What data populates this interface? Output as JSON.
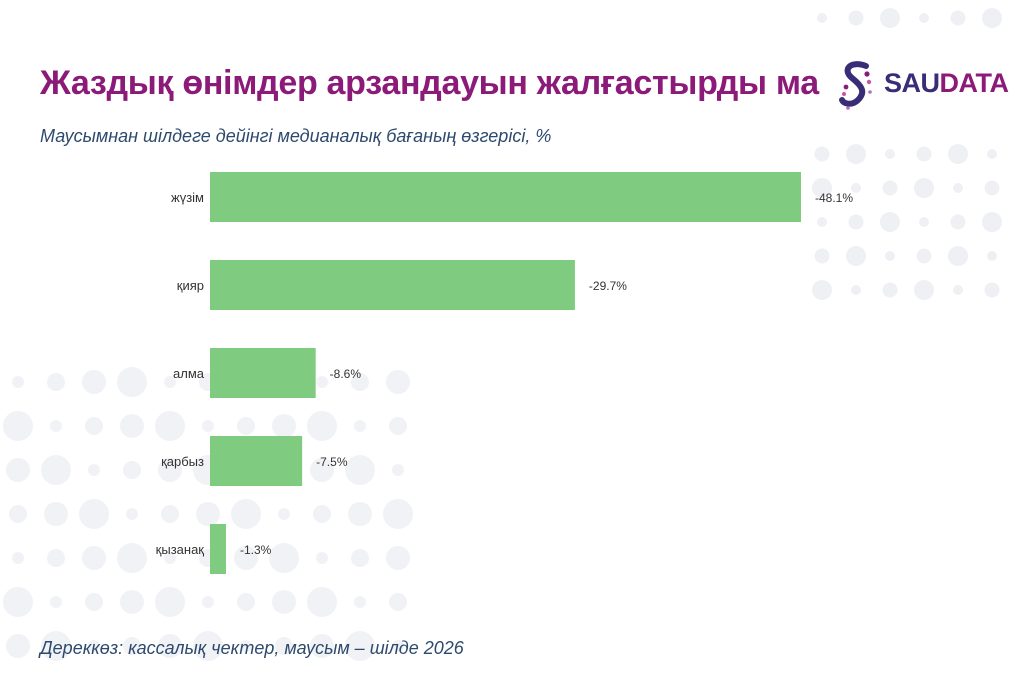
{
  "title": "Жаздық өнімдер арзандауын жалғастырды ма",
  "subtitle": "Маусымнан шілдеге дейінгі медианалық бағаның өзгерісі, %",
  "source": "Дереккөз: кассалық чектер, маусым – шілде 2026",
  "logo": {
    "prefix": "SAU",
    "suffix": "DATA"
  },
  "colors": {
    "bar": "#7fcb7f",
    "title": "#8b1a78",
    "subtitle": "#2d4a6e",
    "logo": "#3a2d78"
  },
  "chart_data": {
    "type": "bar",
    "orientation": "horizontal",
    "categories": [
      "жүзім",
      "қияр",
      "алма",
      "қарбыз",
      "қызанақ"
    ],
    "values": [
      -48.1,
      -29.7,
      -8.6,
      -7.5,
      -1.3
    ],
    "value_labels": [
      "-48.1%",
      "-29.7%",
      "-8.6%",
      "-7.5%",
      "-1.3%"
    ],
    "title": "",
    "xlabel": "",
    "ylabel": "",
    "grid": false,
    "legend": "none"
  }
}
